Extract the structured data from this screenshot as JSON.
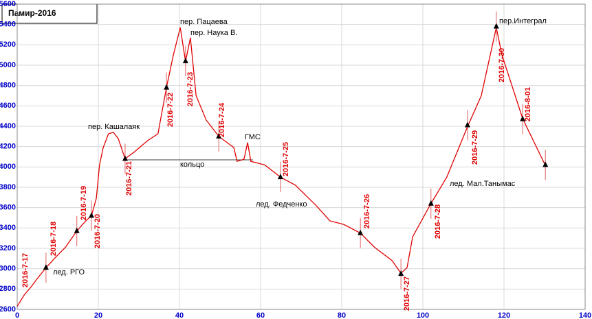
{
  "chart_data": {
    "type": "line",
    "title": "Памир-2016",
    "xlim": [
      0,
      140
    ],
    "xticks": [
      0,
      20,
      40,
      60,
      80,
      100,
      120,
      140
    ],
    "ylim": [
      2600,
      5600
    ],
    "yticks": [
      2600,
      2800,
      3000,
      3200,
      3400,
      3600,
      3800,
      4000,
      4200,
      4400,
      4600,
      4800,
      5000,
      5200,
      5400,
      5600
    ],
    "grid": true,
    "color": "#e00000",
    "x": [
      0,
      1.7,
      3.4,
      5.1,
      7.1,
      9.3,
      11.9,
      14.7,
      16.9,
      18.3,
      19.5,
      20.3,
      21.2,
      22.5,
      23.7,
      24.9,
      26.6,
      28.8,
      32.2,
      34.7,
      36.8,
      38.5,
      40.2,
      41.5,
      42.7,
      44.1,
      46.6,
      49.7,
      53.4,
      54.2,
      55.9,
      56.8,
      57.6,
      61,
      64.9,
      68.6,
      73.7,
      77.1,
      80.5,
      84.6,
      88.1,
      92.4,
      94.6,
      96.1,
      97.5,
      102,
      105.9,
      111,
      114.4,
      118.1,
      119.5,
      124.6,
      130.2
    ],
    "values": [
      2630,
      2740,
      2820,
      2910,
      3010,
      3105,
      3210,
      3370,
      3470,
      3520,
      3690,
      4020,
      4190,
      4325,
      4340,
      4280,
      4080,
      4145,
      4260,
      4325,
      4780,
      5100,
      5370,
      5035,
      5270,
      4700,
      4460,
      4300,
      4190,
      4055,
      4075,
      4240,
      4055,
      4020,
      3900,
      3820,
      3620,
      3470,
      3435,
      3350,
      3210,
      3080,
      2955,
      3010,
      3315,
      3640,
      3900,
      4395,
      4700,
      5370,
      5100,
      4475,
      4015
    ],
    "markers": {
      "x": [
        7.1,
        14.7,
        18.3,
        26.6,
        36.8,
        41.5,
        49.7,
        64.9,
        84.6,
        94.6,
        102,
        111,
        118.1,
        124.6,
        130.2
      ],
      "values": [
        3010,
        3370,
        3520,
        4080,
        4780,
        5040,
        4300,
        3900,
        3350,
        2950,
        3640,
        4410,
        5380,
        4470,
        4020
      ]
    },
    "dates": [
      "2016-7-17",
      "2016-7-18",
      "2016-7-19",
      "2016-7-20",
      "2016-7-21",
      "2016-7-22",
      "2016-7-23",
      "2016-7-24",
      "2016-7-25",
      "2016-7-26",
      "2016-7-27",
      "2016-7-28",
      "2016-7-29",
      "2016-7-30",
      "2016-8-01"
    ],
    "annotations": [
      "лед. РГО",
      "пер. Кашалаяк",
      "пер. Пацаева",
      "пер. Наука В.",
      "кольцо",
      "ГМС",
      "лед. Федченко",
      "лед. Мал.Танымас",
      "пер.Интеграл"
    ]
  }
}
